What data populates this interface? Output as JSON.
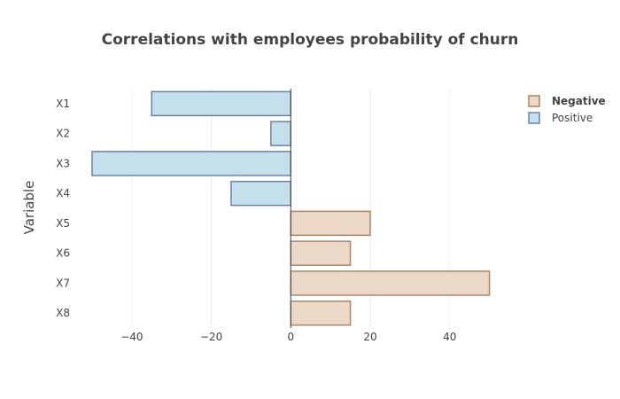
{
  "chart_data": {
    "type": "bar",
    "orientation": "horizontal",
    "title": "Correlations with employees probability of churn",
    "xlabel": "",
    "ylabel": "Variable",
    "xlim": [
      -52,
      55
    ],
    "xticks": [
      -40,
      -20,
      0,
      20,
      40
    ],
    "xtick_labels": [
      "−40",
      "−20",
      "0",
      "20",
      "40"
    ],
    "grid": true,
    "legend_position": "top-right",
    "categories": [
      "X1",
      "X2",
      "X3",
      "X4",
      "X5",
      "X6",
      "X7",
      "X8"
    ],
    "series": [
      {
        "name": "Negative",
        "fill": "#ecd8c7",
        "stroke": "#a88468",
        "values": [
          null,
          null,
          null,
          null,
          20,
          15,
          50,
          15
        ]
      },
      {
        "name": "Positive",
        "fill": "#c6dfec",
        "stroke": "#6b82a8",
        "values": [
          -35,
          -5,
          -50,
          -15,
          null,
          null,
          null,
          null
        ]
      }
    ]
  }
}
